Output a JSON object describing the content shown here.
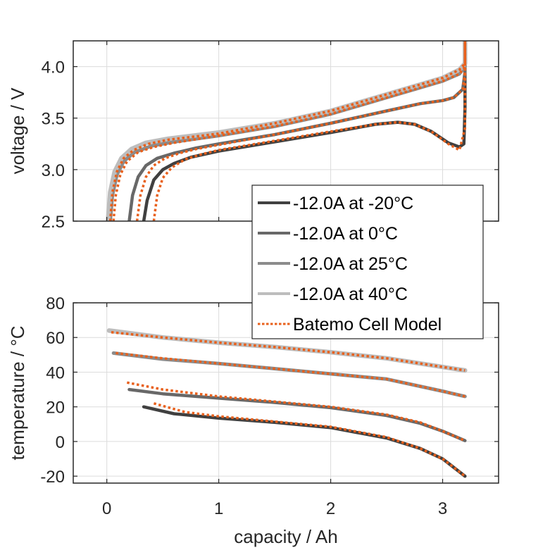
{
  "chart_data": [
    {
      "id": "voltage",
      "type": "line",
      "title": "",
      "xlabel": "",
      "ylabel": "voltage / V",
      "xlim": [
        -0.3,
        3.5
      ],
      "ylim": [
        2.5,
        4.25
      ],
      "xticks": [
        0,
        1,
        2,
        3
      ],
      "xtick_labels": [],
      "yticks": [
        2.5,
        3.0,
        3.5,
        4.0
      ],
      "ytick_labels": [
        "2.5",
        "3.0",
        "3.5",
        "4.0"
      ],
      "grid": true,
      "series": [
        {
          "name": "-12.0A at -20°C",
          "color": "#404040",
          "style": "solid",
          "x": [
            0.33,
            0.36,
            0.42,
            0.5,
            0.6,
            0.75,
            1.0,
            1.5,
            2.0,
            2.4,
            2.6,
            2.75,
            2.9,
            3.05,
            3.15,
            3.19,
            3.2,
            3.2
          ],
          "y": [
            2.5,
            2.7,
            2.9,
            3.0,
            3.06,
            3.12,
            3.18,
            3.27,
            3.36,
            3.44,
            3.46,
            3.44,
            3.37,
            3.26,
            3.22,
            3.25,
            3.6,
            4.25
          ]
        },
        {
          "name": "-12.0A at 0°C",
          "color": "#686868",
          "style": "solid",
          "x": [
            0.2,
            0.23,
            0.28,
            0.35,
            0.45,
            0.6,
            0.8,
            1.0,
            1.5,
            2.0,
            2.5,
            2.8,
            3.0,
            3.1,
            3.18,
            3.2,
            3.2
          ],
          "y": [
            2.5,
            2.75,
            2.93,
            3.04,
            3.11,
            3.16,
            3.21,
            3.25,
            3.34,
            3.45,
            3.57,
            3.64,
            3.67,
            3.7,
            3.78,
            3.95,
            4.25
          ]
        },
        {
          "name": "-12.0A at 25°C",
          "color": "#8c8c8c",
          "style": "solid",
          "x": [
            0.03,
            0.05,
            0.09,
            0.15,
            0.25,
            0.4,
            0.6,
            1.0,
            1.5,
            2.0,
            2.5,
            3.0,
            3.15,
            3.2,
            3.2
          ],
          "y": [
            2.5,
            2.75,
            2.95,
            3.08,
            3.17,
            3.23,
            3.27,
            3.33,
            3.42,
            3.54,
            3.7,
            3.86,
            3.93,
            4.0,
            4.25
          ]
        },
        {
          "name": "-12.0A at 40°C",
          "color": "#bdbdbd",
          "style": "solid",
          "x": [
            0.01,
            0.03,
            0.07,
            0.13,
            0.22,
            0.35,
            0.55,
            1.0,
            1.5,
            2.0,
            2.5,
            3.0,
            3.15,
            3.2,
            3.2
          ],
          "y": [
            2.5,
            2.78,
            2.98,
            3.11,
            3.2,
            3.26,
            3.3,
            3.36,
            3.45,
            3.57,
            3.73,
            3.89,
            3.97,
            4.03,
            4.25
          ]
        },
        {
          "name": "Batemo Cell Model",
          "color": "#e8601c",
          "style": "dotted",
          "legend": false,
          "x": [
            0.42,
            0.45,
            0.5,
            0.58,
            0.7,
            0.85,
            1.0,
            1.5,
            2.0,
            2.4,
            2.6,
            2.75,
            2.9,
            3.05,
            3.15,
            3.2,
            3.2
          ],
          "y": [
            2.5,
            2.75,
            2.92,
            3.02,
            3.1,
            3.15,
            3.19,
            3.28,
            3.37,
            3.44,
            3.46,
            3.44,
            3.37,
            3.25,
            3.19,
            3.4,
            4.25
          ]
        },
        {
          "name": "Batemo Cell Model",
          "color": "#e8601c",
          "style": "dotted",
          "legend": false,
          "x": [
            0.27,
            0.3,
            0.35,
            0.42,
            0.52,
            0.65,
            0.8,
            1.0,
            1.5,
            2.0,
            2.5,
            2.8,
            3.0,
            3.1,
            3.18,
            3.2,
            3.2
          ],
          "y": [
            2.5,
            2.75,
            2.93,
            3.04,
            3.11,
            3.16,
            3.2,
            3.24,
            3.34,
            3.45,
            3.57,
            3.64,
            3.67,
            3.7,
            3.78,
            3.95,
            4.25
          ]
        },
        {
          "name": "Batemo Cell Model",
          "color": "#e8601c",
          "style": "dotted",
          "legend": false,
          "x": [
            0.06,
            0.08,
            0.12,
            0.18,
            0.28,
            0.42,
            0.6,
            1.0,
            1.5,
            2.0,
            2.5,
            3.0,
            3.15,
            3.2,
            3.2
          ],
          "y": [
            2.5,
            2.75,
            2.95,
            3.08,
            3.17,
            3.22,
            3.26,
            3.33,
            3.42,
            3.54,
            3.7,
            3.86,
            3.93,
            4.0,
            4.25
          ]
        },
        {
          "name": "Batemo Cell Model",
          "color": "#e8601c",
          "style": "dotted",
          "legend": false,
          "x": [
            0.03,
            0.05,
            0.09,
            0.15,
            0.24,
            0.37,
            0.55,
            1.0,
            1.5,
            2.0,
            2.5,
            3.0,
            3.15,
            3.2,
            3.2
          ],
          "y": [
            2.5,
            2.78,
            2.98,
            3.11,
            3.19,
            3.25,
            3.29,
            3.35,
            3.45,
            3.57,
            3.73,
            3.89,
            3.97,
            4.03,
            4.25
          ]
        }
      ]
    },
    {
      "id": "temperature",
      "type": "line",
      "title": "",
      "xlabel": "capacity / Ah",
      "ylabel": "temperature / °C",
      "xlim": [
        -0.3,
        3.5
      ],
      "ylim": [
        -24,
        80
      ],
      "xticks": [
        0,
        1,
        2,
        3
      ],
      "xtick_labels": [
        "0",
        "1",
        "2",
        "3"
      ],
      "yticks": [
        -20,
        0,
        20,
        40,
        60,
        80
      ],
      "ytick_labels": [
        "-20",
        "0",
        "20",
        "40",
        "60",
        "80"
      ],
      "grid": true,
      "series": [
        {
          "name": "-12.0A at -20°C",
          "color": "#404040",
          "style": "solid",
          "x": [
            0.33,
            0.6,
            1.0,
            1.5,
            2.0,
            2.5,
            2.8,
            3.0,
            3.1,
            3.2
          ],
          "y": [
            20,
            16,
            13.5,
            11,
            8,
            2,
            -4,
            -10,
            -15,
            -20
          ]
        },
        {
          "name": "-12.0A at 0°C",
          "color": "#686868",
          "style": "solid",
          "x": [
            0.2,
            0.5,
            1.0,
            1.5,
            2.0,
            2.5,
            2.8,
            3.0,
            3.2
          ],
          "y": [
            30,
            27.5,
            25,
            22.5,
            19.5,
            15,
            10.5,
            6,
            0.5
          ]
        },
        {
          "name": "-12.0A at 25°C",
          "color": "#8c8c8c",
          "style": "solid",
          "x": [
            0.06,
            0.5,
            1.0,
            1.5,
            2.0,
            2.5,
            3.0,
            3.2
          ],
          "y": [
            51,
            47.5,
            45,
            42,
            39,
            36,
            29,
            26
          ]
        },
        {
          "name": "-12.0A at 40°C",
          "color": "#bdbdbd",
          "style": "solid",
          "x": [
            0.02,
            0.5,
            1.0,
            1.5,
            2.0,
            2.5,
            3.0,
            3.2
          ],
          "y": [
            64,
            60,
            57,
            54.5,
            51.5,
            48,
            43,
            41
          ]
        },
        {
          "name": "Batemo Cell Model",
          "color": "#e8601c",
          "style": "dotted",
          "legend": false,
          "x": [
            0.42,
            0.7,
            1.0,
            1.5,
            2.0,
            2.5,
            2.8,
            3.0,
            3.1,
            3.2
          ],
          "y": [
            22,
            17,
            14.5,
            11.5,
            8.5,
            2.5,
            -4,
            -10,
            -15,
            -20
          ]
        },
        {
          "name": "Batemo Cell Model",
          "color": "#e8601c",
          "style": "dotted",
          "legend": false,
          "x": [
            0.18,
            0.5,
            1.0,
            1.5,
            2.0,
            2.5,
            2.8,
            3.0,
            3.2
          ],
          "y": [
            34,
            30,
            26,
            23,
            20,
            15.5,
            11,
            6,
            0.5
          ]
        },
        {
          "name": "Batemo Cell Model",
          "color": "#e8601c",
          "style": "dotted",
          "legend": false,
          "x": [
            0.08,
            0.5,
            1.0,
            1.5,
            2.0,
            2.5,
            3.0,
            3.2
          ],
          "y": [
            51,
            48,
            45,
            42,
            39,
            36,
            29,
            26
          ]
        },
        {
          "name": "Batemo Cell Model",
          "color": "#e8601c",
          "style": "dotted",
          "legend": false,
          "x": [
            0.04,
            0.5,
            1.0,
            1.5,
            2.0,
            2.5,
            3.0,
            3.2
          ],
          "y": [
            63,
            60,
            57,
            54.5,
            51.5,
            48,
            43,
            41
          ]
        }
      ]
    }
  ],
  "legend": {
    "placement": "center-right, overlapping both panels",
    "entries": [
      {
        "label": "-12.0A at -20°C",
        "color": "#404040",
        "style": "solid"
      },
      {
        "label": "-12.0A at 0°C",
        "color": "#686868",
        "style": "solid"
      },
      {
        "label": "-12.0A at 25°C",
        "color": "#8c8c8c",
        "style": "solid"
      },
      {
        "label": "-12.0A at 40°C",
        "color": "#bdbdbd",
        "style": "solid"
      },
      {
        "label": "Batemo Cell Model",
        "color": "#e8601c",
        "style": "dotted"
      }
    ]
  }
}
